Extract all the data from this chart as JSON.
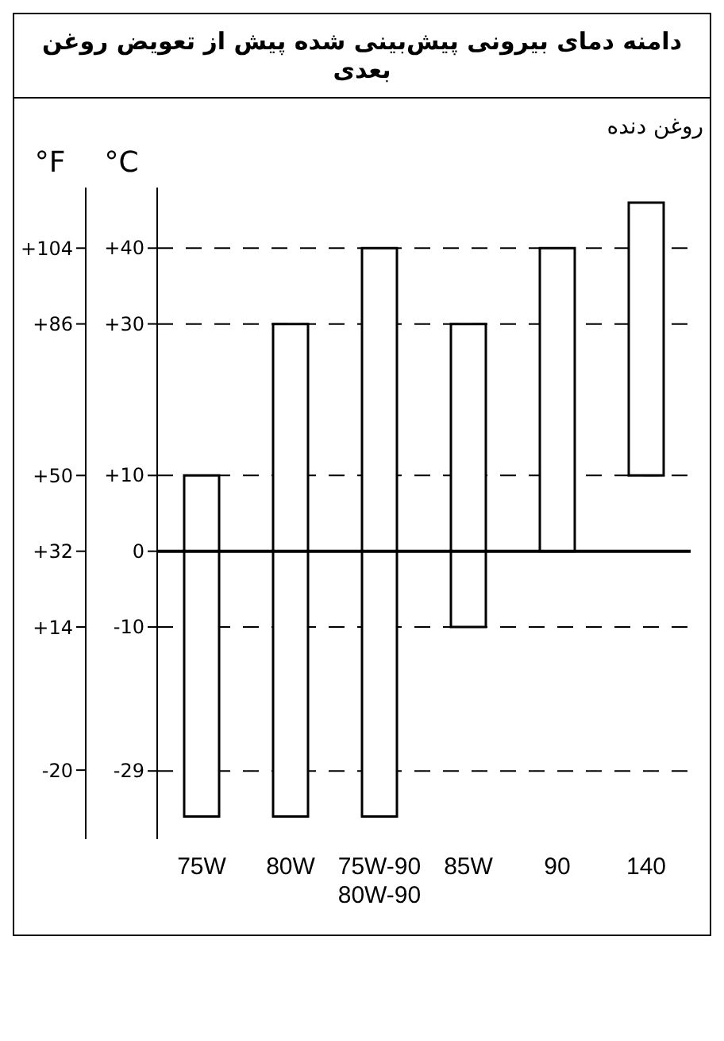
{
  "chart_data": {
    "type": "bar",
    "title": "دامنه دمای بیرونی پیش‌بینی شده پیش از تعویض روغن بعدی",
    "subtitle": "روغن دنده",
    "ylabel": "°C",
    "y2label": "°F",
    "categories": [
      "75W",
      "80W",
      "75W-90 80W-90",
      "85W",
      "90",
      "140"
    ],
    "base": [
      -35,
      -35,
      -35,
      -10,
      0,
      10
    ],
    "values": [
      45,
      65,
      75,
      40,
      40,
      36
    ],
    "color": "#ffffff",
    "ylim": [
      -38,
      48
    ],
    "yticks": [
      {
        "value": 40,
        "label": "+40"
      },
      {
        "value": 30,
        "label": "+30"
      },
      {
        "value": 10,
        "label": "+10"
      },
      0,
      -10,
      -29
    ],
    "y2lim": [
      -36.4,
      118.4
    ],
    "y2ticks": [
      {
        "value": 104,
        "label": "+104"
      },
      {
        "value": 86,
        "label": "+86"
      },
      {
        "value": 50,
        "label": "+50"
      },
      {
        "value": 32,
        "label": "+32"
      },
      {
        "value": 14,
        "label": "+14"
      },
      -20
    ],
    "ref_lines": [
      {
        "axis": "y",
        "value": 0,
        "color": "#000000"
      }
    ],
    "grid": "y"
  }
}
